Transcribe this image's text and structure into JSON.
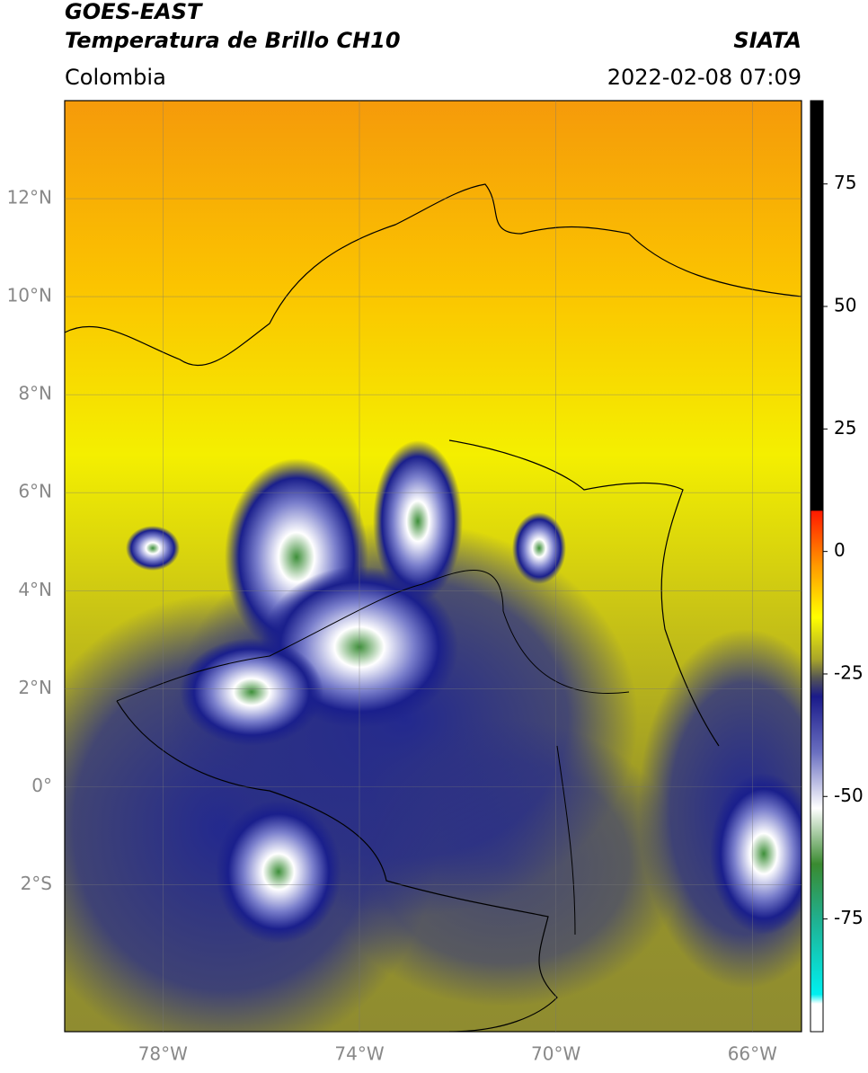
{
  "header": {
    "title_line1": "GOES-EAST",
    "title_line2": "Temperatura de Brillo CH10",
    "source": "SIATA",
    "region": "Colombia",
    "datetime": "2022-02-08 07:09"
  },
  "map": {
    "lat_range": [
      -5,
      14
    ],
    "lon_range": [
      -80,
      -65
    ],
    "lat_ticks": [
      {
        "value": 12,
        "label": "12°N"
      },
      {
        "value": 10,
        "label": "10°N"
      },
      {
        "value": 8,
        "label": "8°N"
      },
      {
        "value": 6,
        "label": "6°N"
      },
      {
        "value": 4,
        "label": "4°N"
      },
      {
        "value": 2,
        "label": "2°N"
      },
      {
        "value": 0,
        "label": "0°"
      },
      {
        "value": -2,
        "label": "2°S"
      }
    ],
    "lon_ticks": [
      {
        "value": -78,
        "label": "78°W"
      },
      {
        "value": -74,
        "label": "74°W"
      },
      {
        "value": -70,
        "label": "70°W"
      },
      {
        "value": -66,
        "label": "66°W"
      }
    ],
    "colorbar": {
      "lim": [
        -98,
        92
      ],
      "ticks": [
        75,
        50,
        25,
        0,
        -25,
        -50,
        -75
      ]
    }
  }
}
